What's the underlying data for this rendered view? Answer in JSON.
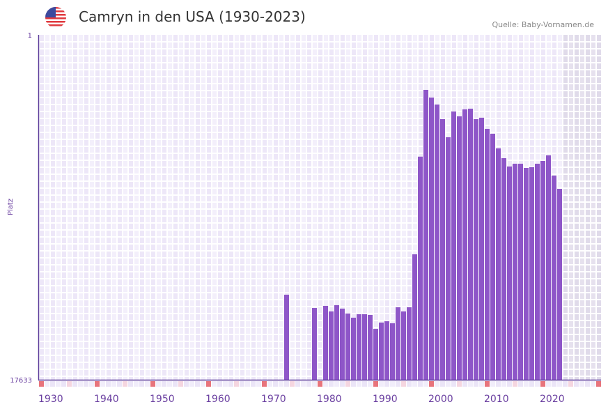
{
  "header": {
    "title": "Camryn in den USA (1930-2023)",
    "source": "Quelle: Baby-Vornamen.de",
    "flag_icon": "us-flag-icon"
  },
  "colors": {
    "bar": "#8e56c8",
    "axis": "#5b3a9a",
    "decade_marker": "#e8747c",
    "half_decade_marker": "#f5d6e0",
    "future_shade": "#e2dcec"
  },
  "chart_data": {
    "type": "bar",
    "title": "Camryn in den USA (1930-2023)",
    "xlabel": "",
    "ylabel": "Platz",
    "y_scale": "sqrt, inverted (rank 1 at top)",
    "ylim": [
      1,
      17633
    ],
    "y_ticks": [
      "1",
      "17633"
    ],
    "xlim": [
      1930,
      2030
    ],
    "x_ticks": [
      "1930",
      "1940",
      "1950",
      "1960",
      "1970",
      "1980",
      "1990",
      "2000",
      "2010",
      "2020"
    ],
    "future_from": 2024,
    "grid": true,
    "years": [
      1974,
      1979,
      1981,
      1982,
      1983,
      1984,
      1985,
      1986,
      1987,
      1988,
      1989,
      1990,
      1991,
      1992,
      1993,
      1994,
      1995,
      1996,
      1997,
      1998,
      1999,
      2000,
      2001,
      2002,
      2003,
      2004,
      2005,
      2006,
      2007,
      2008,
      2009,
      2010,
      2011,
      2012,
      2013,
      2014,
      2015,
      2016,
      2017,
      2018,
      2019,
      2020,
      2021,
      2022,
      2023
    ],
    "ranks": [
      10010,
      11060,
      10890,
      11340,
      10830,
      11110,
      11510,
      11860,
      11570,
      11570,
      11630,
      12820,
      12270,
      12160,
      12330,
      11000,
      11340,
      11000,
      7140,
      2200,
      450,
      583,
      720,
      1054,
      1555,
      871,
      985,
      824,
      809,
      1054,
      1019,
      1312,
      1451,
      1912,
      2255,
      2570,
      2463,
      2463,
      2625,
      2598,
      2463,
      2358,
      2154,
      2937,
      3515
    ]
  }
}
